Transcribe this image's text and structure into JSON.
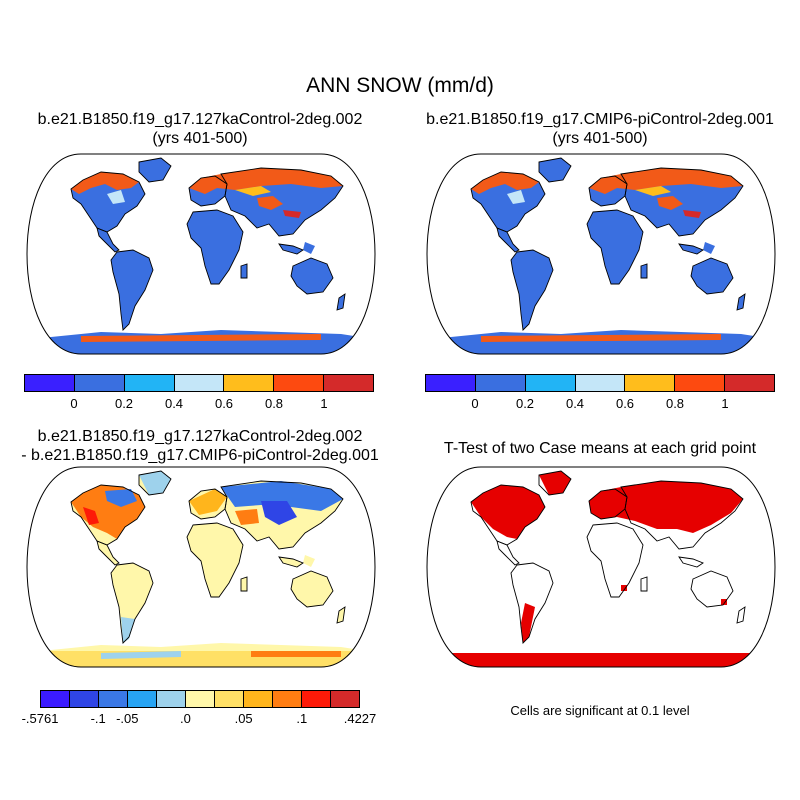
{
  "title": "ANN SNOW (mm/d)",
  "panels": {
    "top_left": {
      "title_line1": "b.e21.B1850.f19_g17.127kaControl-2deg.002",
      "title_line2": "(yrs 401-500)"
    },
    "top_right": {
      "title_line1": "b.e21.B1850.f19_g17.CMIP6-piControl-2deg.001",
      "title_line2": "(yrs 401-500)"
    },
    "bottom_left": {
      "title_line1": "b.e21.B1850.f19_g17.127kaControl-2deg.002",
      "title_line2": "- b.e21.B1850.f19_g17.CMIP6-piControl-2deg.001"
    },
    "bottom_right": {
      "title_line1": "T-Test of two Case means at each grid point",
      "note": "Cells are significant at 0.1 level"
    }
  },
  "colorbars": {
    "abs": {
      "colors": [
        "#3a20ff",
        "#3a6fe0",
        "#22b4f5",
        "#c4e6f8",
        "#ffbd1c",
        "#fd4a10",
        "#d42a2a"
      ],
      "tick_labels": [
        "0",
        "0.2",
        "0.4",
        "0.6",
        "0.8",
        "1"
      ]
    },
    "diff": {
      "colors": [
        "#3b1bff",
        "#2f45e6",
        "#3a78e6",
        "#27a4f3",
        "#9ed2ec",
        "#fff7aa",
        "#ffe066",
        "#ffb51c",
        "#ff7d12",
        "#fd1a08",
        "#d42a2a"
      ],
      "tick_labels": [
        "-.5761",
        "-.1",
        "-.05",
        ".0",
        ".05",
        ".1",
        ".4227"
      ]
    }
  },
  "legend": {
    "significant_color": "#e60000"
  }
}
